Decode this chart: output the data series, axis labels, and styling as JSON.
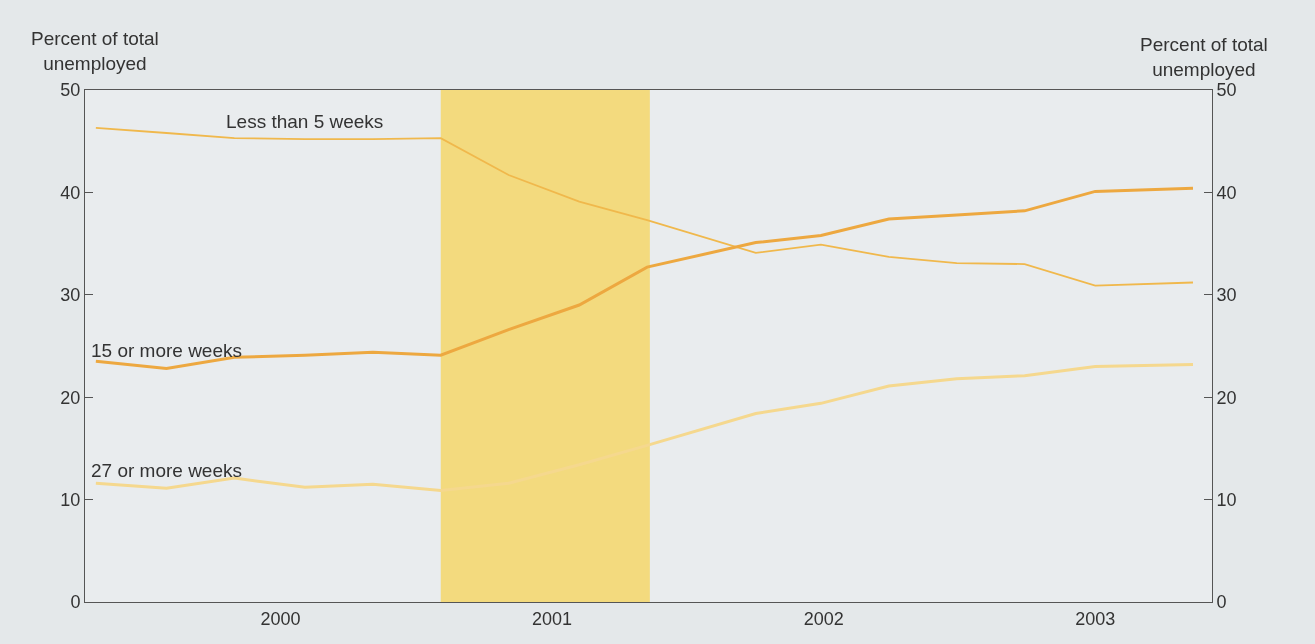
{
  "chart_data": {
    "type": "line",
    "ylabel": "Percent of total unemployed",
    "y2label": "Percent of total unemployed",
    "x": [
      1999.82,
      2000.08,
      2000.33,
      2000.59,
      2000.84,
      2001.09,
      2001.34,
      2001.6,
      2001.85,
      2002.25,
      2002.49,
      2002.74,
      2002.99,
      2003.24,
      2003.5,
      2003.86
    ],
    "series": [
      {
        "name": "Less than 5 weeks",
        "color": "#f0b84c",
        "values": [
          46.3,
          45.8,
          45.3,
          45.2,
          45.2,
          45.3,
          41.7,
          39.1,
          37.3,
          34.1,
          34.9,
          33.7,
          33.1,
          33.0,
          30.9,
          31.2
        ]
      },
      {
        "name": "15 or more weeks",
        "color": "#eda840",
        "values": [
          23.5,
          22.8,
          23.9,
          24.1,
          24.4,
          24.1,
          26.6,
          29.0,
          32.7,
          35.1,
          35.8,
          37.4,
          37.8,
          38.2,
          40.1,
          40.4
        ]
      },
      {
        "name": "27 or more weeks",
        "color": "#f5d88e",
        "values": [
          11.6,
          11.1,
          12.1,
          11.2,
          11.5,
          10.9,
          11.6,
          13.4,
          15.3,
          18.4,
          19.4,
          21.1,
          21.8,
          22.1,
          23.0,
          23.2
        ]
      }
    ],
    "xlim": [
      1999.78,
      2003.93
    ],
    "xticks": [
      {
        "value": 2000.5,
        "label": "2000"
      },
      {
        "value": 2001.5,
        "label": "2001"
      },
      {
        "value": 2002.5,
        "label": "2002"
      },
      {
        "value": 2003.5,
        "label": "2003"
      }
    ],
    "ylim": [
      0,
      50
    ],
    "yticks": [
      0,
      10,
      20,
      30,
      40,
      50
    ],
    "y2lim": [
      0,
      50
    ],
    "y2ticks": [
      0,
      10,
      20,
      30,
      40,
      50
    ],
    "bands": [
      {
        "axis": "x",
        "from": 2001.09,
        "to": 2001.86,
        "color": "#f3da7e"
      }
    ],
    "grid": false,
    "legend": false
  }
}
